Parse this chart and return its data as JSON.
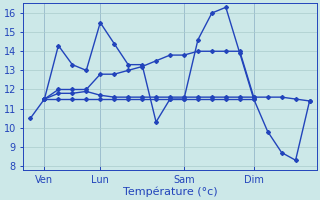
{
  "background_color": "#cce8e8",
  "line_color": "#2244bb",
  "grid_color": "#aacccc",
  "xlabel": "Température (°c)",
  "xlabel_fontsize": 8,
  "ylim": [
    7.8,
    16.5
  ],
  "xlim": [
    -0.5,
    20.5
  ],
  "yticks": [
    8,
    9,
    10,
    11,
    12,
    13,
    14,
    15,
    16
  ],
  "xtick_labels": [
    "Ven",
    "Lun",
    "Sam",
    "Dim"
  ],
  "xtick_positions": [
    1,
    5,
    11,
    16
  ],
  "series1_x": [
    0,
    1,
    2,
    3,
    4,
    5,
    6,
    7,
    8,
    9,
    10,
    11,
    12,
    13,
    14,
    15,
    16,
    17,
    18,
    19,
    20
  ],
  "series1_y": [
    10.5,
    11.5,
    14.3,
    13.3,
    13.0,
    15.5,
    14.4,
    13.3,
    13.3,
    10.3,
    11.5,
    11.5,
    14.6,
    16.0,
    16.3,
    13.9,
    11.5,
    9.8,
    8.7,
    8.3,
    11.4
  ],
  "series2_x": [
    1,
    2,
    3,
    4,
    5,
    6,
    7,
    8,
    9,
    10,
    11,
    12,
    13,
    14,
    15,
    16,
    17,
    18,
    19,
    20
  ],
  "series2_y": [
    11.5,
    11.8,
    11.8,
    11.9,
    11.7,
    11.6,
    11.6,
    11.6,
    11.6,
    11.6,
    11.6,
    11.6,
    11.6,
    11.6,
    11.6,
    11.6,
    11.6,
    11.6,
    11.5,
    11.4
  ],
  "series3_x": [
    1,
    2,
    3,
    4,
    5,
    6,
    7,
    8,
    9,
    10,
    11,
    12,
    13,
    14,
    15,
    16
  ],
  "series3_y": [
    11.5,
    12.0,
    12.0,
    12.0,
    12.8,
    12.8,
    13.0,
    13.2,
    13.5,
    13.8,
    13.8,
    14.0,
    14.0,
    14.0,
    14.0,
    11.6
  ],
  "series4_x": [
    1,
    2,
    3,
    4,
    5,
    6,
    7,
    8,
    9,
    10,
    11,
    12,
    13,
    14,
    15,
    16
  ],
  "series4_y": [
    11.5,
    11.5,
    11.5,
    11.5,
    11.5,
    11.5,
    11.5,
    11.5,
    11.5,
    11.5,
    11.5,
    11.5,
    11.5,
    11.5,
    11.5,
    11.5
  ],
  "tick_fontsize": 7,
  "marker": "D",
  "markersize": 2.0,
  "linewidth": 1.0
}
